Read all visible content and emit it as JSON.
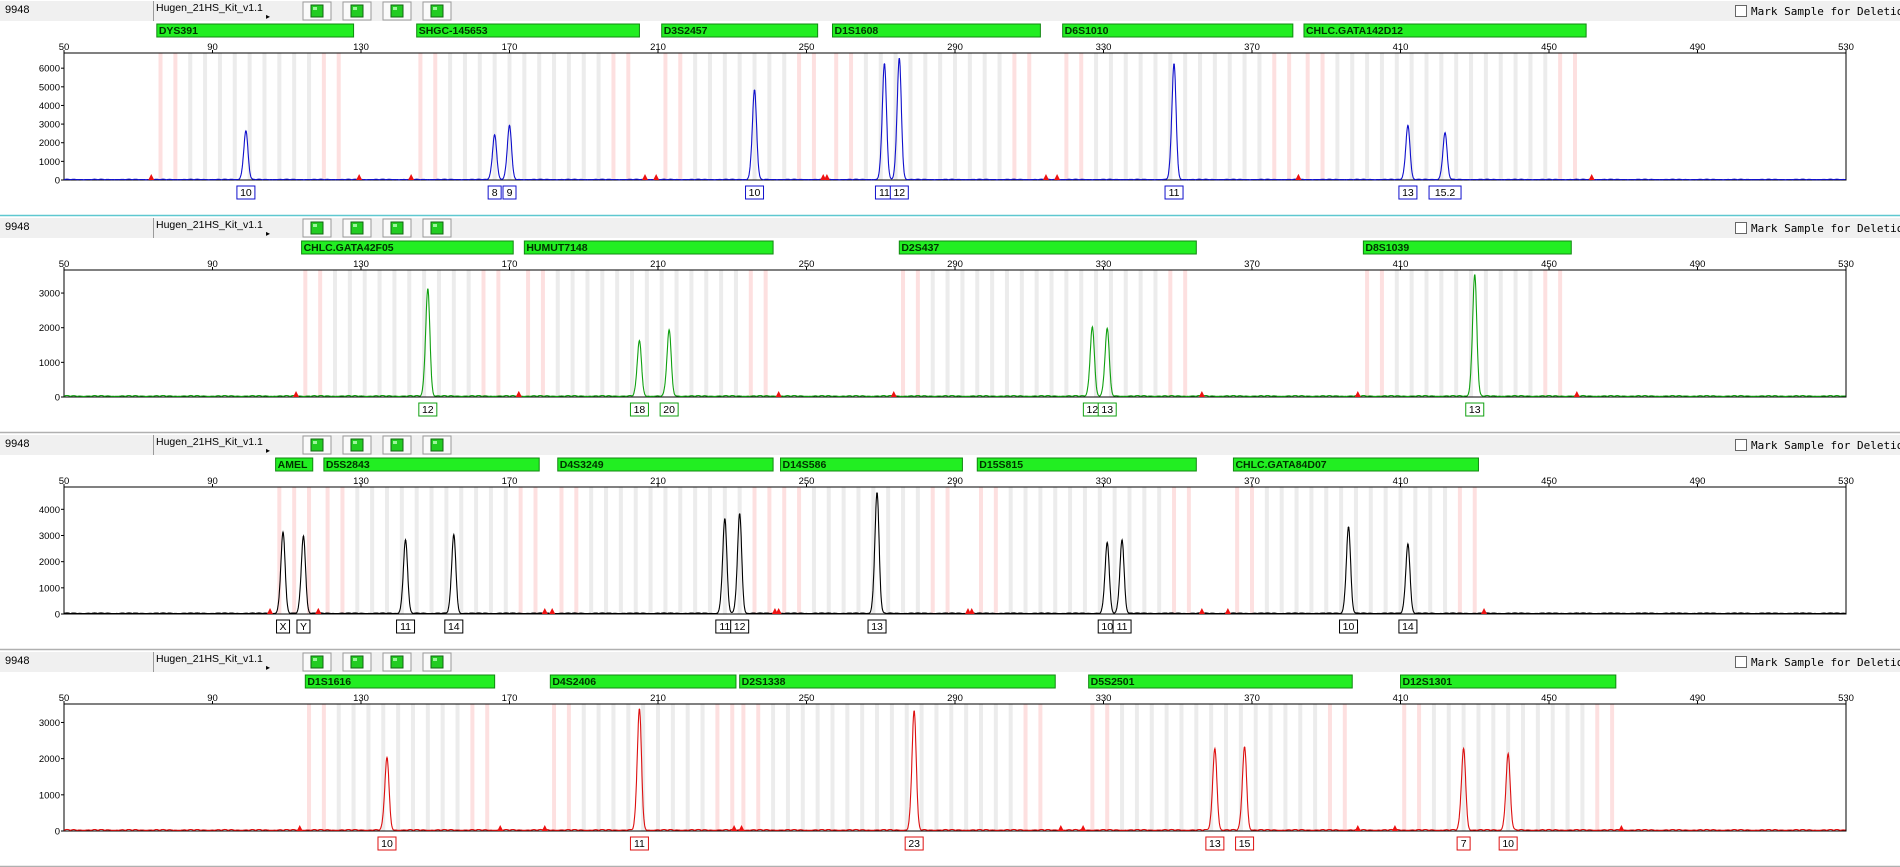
{
  "panels": [
    {
      "sample": "9948",
      "kit": "Hugen_21HS_Kit_v1.1",
      "mark_label": "Mark Sample for Deletion",
      "color": "#1010cc",
      "chart_data": {
        "type": "line",
        "x_ticks": [
          50,
          90,
          130,
          170,
          210,
          250,
          290,
          330,
          370,
          410,
          450,
          490,
          530
        ],
        "xlim": [
          50,
          530
        ],
        "y_ticks": [
          0,
          1000,
          2000,
          3000,
          4000,
          5000,
          6000
        ],
        "ylim": [
          0,
          6600
        ],
        "loci": [
          {
            "name": "DYS391",
            "start": 75,
            "end": 128
          },
          {
            "name": "SHGC-145653",
            "start": 145,
            "end": 205
          },
          {
            "name": "D3S2457",
            "start": 211,
            "end": 253
          },
          {
            "name": "D1S1608",
            "start": 257,
            "end": 313
          },
          {
            "name": "D6S1010",
            "start": 319,
            "end": 381
          },
          {
            "name": "CHLC.GATA142D12",
            "start": 384,
            "end": 460
          }
        ],
        "peaks": [
          {
            "x": 99,
            "height": 2600,
            "label": "10"
          },
          {
            "x": 166,
            "height": 2400,
            "label": "8"
          },
          {
            "x": 170,
            "height": 2900,
            "label": "9"
          },
          {
            "x": 236,
            "height": 4800,
            "label": "10"
          },
          {
            "x": 271,
            "height": 6200,
            "label": "11"
          },
          {
            "x": 275,
            "height": 6500,
            "label": "12"
          },
          {
            "x": 349,
            "height": 6200,
            "label": "11"
          },
          {
            "x": 412,
            "height": 2900,
            "label": "13"
          },
          {
            "x": 422,
            "height": 2500,
            "label": "15.2"
          }
        ]
      }
    },
    {
      "sample": "9948",
      "kit": "Hugen_21HS_Kit_v1.1",
      "mark_label": "Mark Sample for Deletion",
      "color": "#10a010",
      "chart_data": {
        "type": "line",
        "x_ticks": [
          50,
          90,
          130,
          170,
          210,
          250,
          290,
          330,
          370,
          410,
          450,
          490,
          530
        ],
        "xlim": [
          50,
          530
        ],
        "y_ticks": [
          0,
          1000,
          2000,
          3000
        ],
        "ylim": [
          0,
          3550
        ],
        "loci": [
          {
            "name": "CHLC.GATA42F05",
            "start": 114,
            "end": 171
          },
          {
            "name": "HUMUT7148",
            "start": 174,
            "end": 241
          },
          {
            "name": "D2S437",
            "start": 275,
            "end": 355
          },
          {
            "name": "D8S1039",
            "start": 400,
            "end": 456
          }
        ],
        "peaks": [
          {
            "x": 148,
            "height": 3100,
            "label": "12"
          },
          {
            "x": 205,
            "height": 1600,
            "label": "18"
          },
          {
            "x": 213,
            "height": 1900,
            "label": "20"
          },
          {
            "x": 327,
            "height": 2000,
            "label": "12"
          },
          {
            "x": 331,
            "height": 1950,
            "label": "13"
          },
          {
            "x": 430,
            "height": 3500,
            "label": "13"
          }
        ]
      }
    },
    {
      "sample": "9948",
      "kit": "Hugen_21HS_Kit_v1.1",
      "mark_label": "Mark Sample for Deletion",
      "color": "#000000",
      "chart_data": {
        "type": "line",
        "x_ticks": [
          50,
          90,
          130,
          170,
          210,
          250,
          290,
          330,
          370,
          410,
          450,
          490,
          530
        ],
        "xlim": [
          50,
          530
        ],
        "y_ticks": [
          0,
          1000,
          2000,
          3000,
          4000
        ],
        "ylim": [
          0,
          4700
        ],
        "loci": [
          {
            "name": "AMEL",
            "start": 107,
            "end": 117
          },
          {
            "name": "D5S2843",
            "start": 120,
            "end": 178
          },
          {
            "name": "D4S3249",
            "start": 183,
            "end": 241
          },
          {
            "name": "D14S586",
            "start": 243,
            "end": 292
          },
          {
            "name": "D15S815",
            "start": 296,
            "end": 355
          },
          {
            "name": "CHLC.GATA84D07",
            "start": 365,
            "end": 431
          }
        ],
        "peaks": [
          {
            "x": 109,
            "height": 3100,
            "label": "X"
          },
          {
            "x": 114.5,
            "height": 2950,
            "label": "Y"
          },
          {
            "x": 142,
            "height": 2800,
            "label": "11"
          },
          {
            "x": 155,
            "height": 3000,
            "label": "14"
          },
          {
            "x": 228,
            "height": 3600,
            "label": "11"
          },
          {
            "x": 232,
            "height": 3800,
            "label": "12"
          },
          {
            "x": 269,
            "height": 4600,
            "label": "13"
          },
          {
            "x": 331,
            "height": 2700,
            "label": "10"
          },
          {
            "x": 335,
            "height": 2800,
            "label": "11"
          },
          {
            "x": 396,
            "height": 3300,
            "label": "10"
          },
          {
            "x": 412,
            "height": 2650,
            "label": "14"
          }
        ]
      }
    },
    {
      "sample": "9948",
      "kit": "Hugen_21HS_Kit_v1.1",
      "mark_label": "Mark Sample for Deletion",
      "color": "#dd1010",
      "chart_data": {
        "type": "line",
        "x_ticks": [
          50,
          90,
          130,
          170,
          210,
          250,
          290,
          330,
          370,
          410,
          450,
          490,
          530
        ],
        "xlim": [
          50,
          530
        ],
        "y_ticks": [
          0,
          1000,
          2000,
          3000
        ],
        "ylim": [
          0,
          3400
        ],
        "loci": [
          {
            "name": "D1S1616",
            "start": 115,
            "end": 166
          },
          {
            "name": "D4S2406",
            "start": 181,
            "end": 231
          },
          {
            "name": "D2S1338",
            "start": 232,
            "end": 317
          },
          {
            "name": "D5S2501",
            "start": 326,
            "end": 397
          },
          {
            "name": "D12S1301",
            "start": 410,
            "end": 468
          }
        ],
        "peaks": [
          {
            "x": 137,
            "height": 2000,
            "label": "10"
          },
          {
            "x": 205,
            "height": 3350,
            "label": "11"
          },
          {
            "x": 279,
            "height": 3300,
            "label": "23"
          },
          {
            "x": 360,
            "height": 2250,
            "label": "13"
          },
          {
            "x": 368,
            "height": 2300,
            "label": "15"
          },
          {
            "x": 427,
            "height": 2250,
            "label": "7"
          },
          {
            "x": 439,
            "height": 2100,
            "label": "10"
          }
        ]
      }
    }
  ]
}
